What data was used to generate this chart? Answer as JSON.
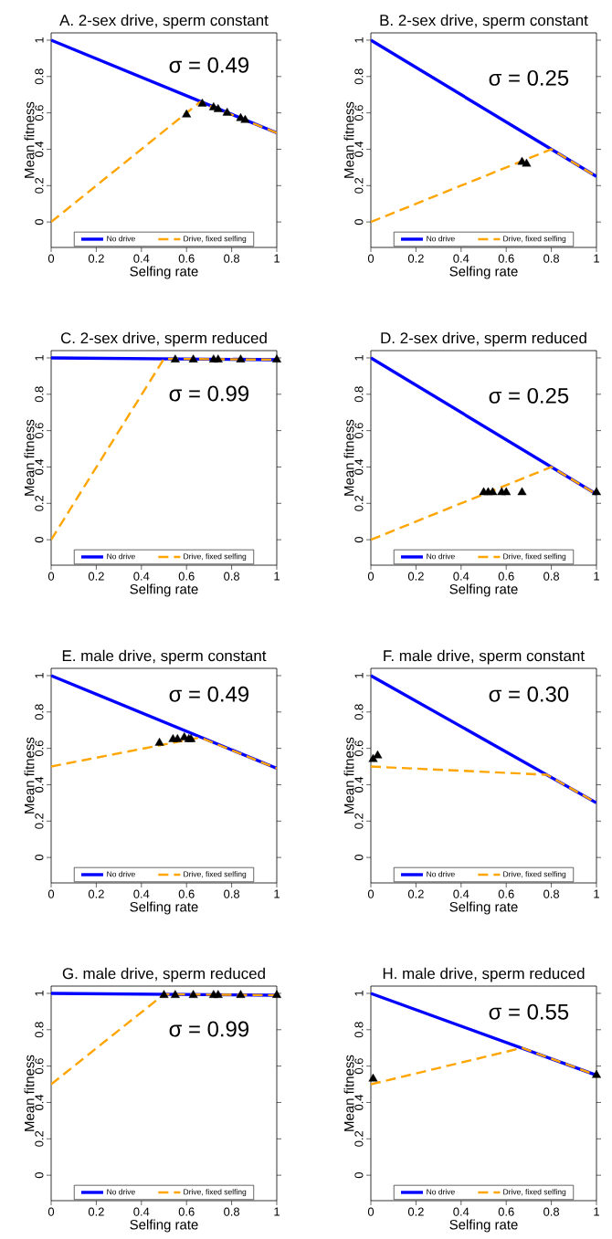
{
  "chart_data": [
    {
      "type": "line",
      "title": "A. 2-sex drive, sperm constant",
      "xlabel": "Selfing rate",
      "ylabel": "Mean fitness",
      "annotations": [
        "σ = 0.49"
      ],
      "xlim": [
        0,
        1
      ],
      "ylim": [
        -0.14,
        1.04
      ],
      "xticks": [
        0,
        0.2,
        0.4,
        0.6,
        0.8,
        1
      ],
      "yticks": [
        0,
        0.2,
        0.4,
        0.6,
        0.8,
        1
      ],
      "legend": "bottom",
      "series": [
        {
          "name": "No drive",
          "color": "#0000ff",
          "line_style": "solid",
          "x": [
            0,
            1
          ],
          "values": [
            1,
            0.49
          ]
        },
        {
          "name": "Drive, fixed selfing",
          "color": "#ffa500",
          "line_style": "dashed",
          "x": [
            0,
            0.66,
            1
          ],
          "values": [
            0,
            0.66,
            0.49
          ]
        },
        {
          "type": "scatter",
          "color": "#000000",
          "marker": "triangle",
          "x": [
            0.6,
            0.67,
            0.72,
            0.74,
            0.78,
            0.84,
            0.86
          ],
          "values": [
            0.59,
            0.65,
            0.63,
            0.62,
            0.6,
            0.57,
            0.56
          ]
        }
      ]
    },
    {
      "type": "line",
      "title": "B. 2-sex drive, sperm constant",
      "xlabel": "Selfing rate",
      "ylabel": "Mean fitness",
      "annotations": [
        "σ = 0.25"
      ],
      "xlim": [
        0,
        1
      ],
      "ylim": [
        -0.14,
        1.04
      ],
      "xticks": [
        0,
        0.2,
        0.4,
        0.6,
        0.8,
        1
      ],
      "yticks": [
        0,
        0.2,
        0.4,
        0.6,
        0.8,
        1
      ],
      "legend": "bottom",
      "series": [
        {
          "name": "No drive",
          "color": "#0000ff",
          "line_style": "solid",
          "x": [
            0,
            1
          ],
          "values": [
            1,
            0.25
          ]
        },
        {
          "name": "Drive, fixed selfing",
          "color": "#ffa500",
          "line_style": "dashed",
          "x": [
            0,
            0.8,
            1
          ],
          "values": [
            0,
            0.4,
            0.25
          ]
        },
        {
          "type": "scatter",
          "color": "#000000",
          "marker": "triangle",
          "x": [
            0.67,
            0.69
          ],
          "values": [
            0.33,
            0.32
          ]
        }
      ]
    },
    {
      "type": "line",
      "title": "C. 2-sex drive, sperm reduced",
      "xlabel": "Selfing rate",
      "ylabel": "Mean fitness",
      "annotations": [
        "σ = 0.99"
      ],
      "xlim": [
        0,
        1
      ],
      "ylim": [
        -0.14,
        1.04
      ],
      "xticks": [
        0,
        0.2,
        0.4,
        0.6,
        0.8,
        1
      ],
      "yticks": [
        0,
        0.2,
        0.4,
        0.6,
        0.8,
        1
      ],
      "legend": "bottom",
      "series": [
        {
          "name": "No drive",
          "color": "#0000ff",
          "line_style": "solid",
          "x": [
            0,
            1
          ],
          "values": [
            1,
            0.99
          ]
        },
        {
          "name": "Drive, fixed selfing",
          "color": "#ffa500",
          "line_style": "dashed",
          "x": [
            0,
            0.5,
            1
          ],
          "values": [
            0,
            0.995,
            0.99
          ]
        },
        {
          "type": "scatter",
          "color": "#000000",
          "marker": "triangle",
          "x": [
            0.55,
            0.63,
            0.72,
            0.74,
            0.84,
            1
          ],
          "values": [
            0.99,
            0.99,
            0.99,
            0.99,
            0.99,
            0.99
          ]
        }
      ]
    },
    {
      "type": "line",
      "title": "D. 2-sex drive, sperm reduced",
      "xlabel": "Selfing rate",
      "ylabel": "Mean fitness",
      "annotations": [
        "σ = 0.25"
      ],
      "xlim": [
        0,
        1
      ],
      "ylim": [
        -0.14,
        1.04
      ],
      "xticks": [
        0,
        0.2,
        0.4,
        0.6,
        0.8,
        1
      ],
      "yticks": [
        0,
        0.2,
        0.4,
        0.6,
        0.8,
        1
      ],
      "legend": "bottom",
      "series": [
        {
          "name": "No drive",
          "color": "#0000ff",
          "line_style": "solid",
          "x": [
            0,
            1
          ],
          "values": [
            1,
            0.25
          ]
        },
        {
          "name": "Drive, fixed selfing",
          "color": "#ffa500",
          "line_style": "dashed",
          "x": [
            0,
            0.8,
            1
          ],
          "values": [
            0,
            0.4,
            0.25
          ]
        },
        {
          "type": "scatter",
          "color": "#000000",
          "marker": "triangle",
          "x": [
            0.5,
            0.52,
            0.54,
            0.58,
            0.6,
            0.67,
            1
          ],
          "values": [
            0.26,
            0.26,
            0.26,
            0.26,
            0.26,
            0.26,
            0.26
          ]
        }
      ]
    },
    {
      "type": "line",
      "title": "E. male drive, sperm constant",
      "xlabel": "Selfing rate",
      "ylabel": "Mean fitness",
      "annotations": [
        "σ = 0.49"
      ],
      "xlim": [
        0,
        1
      ],
      "ylim": [
        -0.14,
        1.04
      ],
      "xticks": [
        0,
        0.2,
        0.4,
        0.6,
        0.8,
        1
      ],
      "yticks": [
        0,
        0.2,
        0.4,
        0.6,
        0.8,
        1
      ],
      "legend": "bottom",
      "series": [
        {
          "name": "No drive",
          "color": "#0000ff",
          "line_style": "solid",
          "x": [
            0,
            1
          ],
          "values": [
            1,
            0.49
          ]
        },
        {
          "name": "Drive, fixed selfing",
          "color": "#ffa500",
          "line_style": "dashed",
          "x": [
            0,
            0.66,
            1
          ],
          "values": [
            0.5,
            0.66,
            0.49
          ]
        },
        {
          "type": "scatter",
          "color": "#000000",
          "marker": "triangle",
          "x": [
            0.48,
            0.54,
            0.56,
            0.59,
            0.61,
            0.62
          ],
          "values": [
            0.63,
            0.65,
            0.65,
            0.66,
            0.65,
            0.65
          ]
        }
      ]
    },
    {
      "type": "line",
      "title": "F. male drive, sperm constant",
      "xlabel": "Selfing rate",
      "ylabel": "Mean fitness",
      "annotations": [
        "σ = 0.30"
      ],
      "xlim": [
        0,
        1
      ],
      "ylim": [
        -0.14,
        1.04
      ],
      "xticks": [
        0,
        0.2,
        0.4,
        0.6,
        0.8,
        1
      ],
      "yticks": [
        0,
        0.2,
        0.4,
        0.6,
        0.8,
        1
      ],
      "legend": "bottom",
      "series": [
        {
          "name": "No drive",
          "color": "#0000ff",
          "line_style": "solid",
          "x": [
            0,
            1
          ],
          "values": [
            1,
            0.3
          ]
        },
        {
          "name": "Drive, fixed selfing",
          "color": "#ffa500",
          "line_style": "dashed",
          "x": [
            0,
            0.78,
            1
          ],
          "values": [
            0.5,
            0.455,
            0.3
          ]
        },
        {
          "type": "scatter",
          "color": "#000000",
          "marker": "triangle",
          "x": [
            0.01,
            0.03
          ],
          "values": [
            0.54,
            0.56
          ]
        }
      ]
    },
    {
      "type": "line",
      "title": "G. male drive, sperm reduced",
      "xlabel": "Selfing rate",
      "ylabel": "Mean fitness",
      "annotations": [
        "σ = 0.99"
      ],
      "xlim": [
        0,
        1
      ],
      "ylim": [
        -0.14,
        1.04
      ],
      "xticks": [
        0,
        0.2,
        0.4,
        0.6,
        0.8,
        1
      ],
      "yticks": [
        0,
        0.2,
        0.4,
        0.6,
        0.8,
        1
      ],
      "legend": "bottom",
      "series": [
        {
          "name": "No drive",
          "color": "#0000ff",
          "line_style": "solid",
          "x": [
            0,
            1
          ],
          "values": [
            1,
            0.99
          ]
        },
        {
          "name": "Drive, fixed selfing",
          "color": "#ffa500",
          "line_style": "dashed",
          "x": [
            0,
            0.5,
            1
          ],
          "values": [
            0.5,
            0.995,
            0.99
          ]
        },
        {
          "type": "scatter",
          "color": "#000000",
          "marker": "triangle",
          "x": [
            0.5,
            0.55,
            0.63,
            0.72,
            0.74,
            0.84,
            1
          ],
          "values": [
            0.99,
            0.99,
            0.99,
            0.99,
            0.99,
            0.99,
            0.99
          ]
        }
      ]
    },
    {
      "type": "line",
      "title": "H. male drive, sperm reduced",
      "xlabel": "Selfing rate",
      "ylabel": "Mean fitness",
      "annotations": [
        "σ = 0.55"
      ],
      "xlim": [
        0,
        1
      ],
      "ylim": [
        -0.14,
        1.04
      ],
      "xticks": [
        0,
        0.2,
        0.4,
        0.6,
        0.8,
        1
      ],
      "yticks": [
        0,
        0.2,
        0.4,
        0.6,
        0.8,
        1
      ],
      "legend": "bottom",
      "series": [
        {
          "name": "No drive",
          "color": "#0000ff",
          "line_style": "solid",
          "x": [
            0,
            1
          ],
          "values": [
            1,
            0.55
          ]
        },
        {
          "name": "Drive, fixed selfing",
          "color": "#ffa500",
          "line_style": "dashed",
          "x": [
            0,
            0.67,
            1
          ],
          "values": [
            0.5,
            0.7,
            0.55
          ]
        },
        {
          "type": "scatter",
          "color": "#000000",
          "marker": "triangle",
          "x": [
            0.01,
            1
          ],
          "values": [
            0.53,
            0.55
          ]
        }
      ]
    }
  ]
}
